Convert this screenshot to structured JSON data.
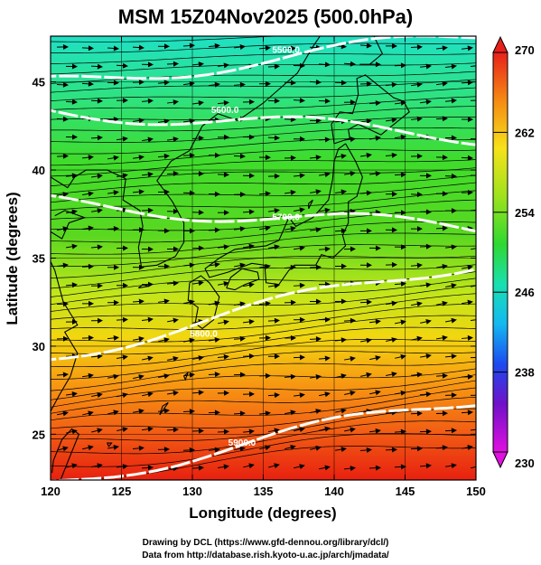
{
  "title": "MSM 15Z04Nov2025 (500.0hPa)",
  "x_axis_label": "Longitude (degrees)",
  "y_axis_label": "Latitude  (degrees)",
  "x_ticks": [
    "120",
    "125",
    "130",
    "135",
    "140",
    "145",
    "150"
  ],
  "y_ticks": [
    "25",
    "30",
    "35",
    "40",
    "45"
  ],
  "colorbar": {
    "ticks": [
      "270",
      "262",
      "254",
      "246",
      "238",
      "230"
    ],
    "min": 230,
    "max": 270
  },
  "contours": [
    {
      "label": "5900.0",
      "lon": 133.5,
      "lat": 24.5
    },
    {
      "label": "5800.0",
      "lon": 130.8,
      "lat": 30.7
    },
    {
      "label": "5700.0",
      "lon": 136.6,
      "lat": 37.3
    },
    {
      "label": "5600.0",
      "lon": 132.3,
      "lat": 43.4
    },
    {
      "label": "5500.0",
      "lon": 136.6,
      "lat": 46.8
    }
  ],
  "credits": {
    "line1": "Drawing by DCL (https://www.gfd-dennou.org/library/dcl/)",
    "line2": "Data from http://database.rish.kyoto-u.ac.jp/arch/jmadata/"
  },
  "chart_data": {
    "type": "heatmap",
    "title": "MSM 15Z04Nov2025 (500.0hPa)",
    "xlabel": "Longitude (degrees)",
    "ylabel": "Latitude  (degrees)",
    "xlim": [
      120,
      150
    ],
    "ylim": [
      22.4,
      47.6
    ],
    "color_range": [
      230,
      270
    ],
    "colorbar_ticks": [
      270,
      262,
      254,
      246,
      238,
      230
    ],
    "contour_levels": [
      5500.0,
      5600.0,
      5700.0,
      5800.0,
      5900.0
    ],
    "grid": true
  }
}
